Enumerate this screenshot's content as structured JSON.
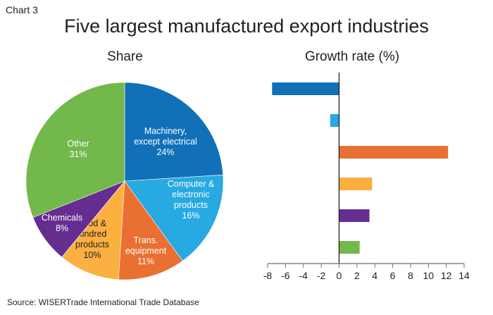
{
  "chart_label": "Chart 3",
  "title": "Five largest manufactured export industries",
  "source": "Source: WISERTrade International Trade Database",
  "chart_data": [
    {
      "type": "pie",
      "title": "Share",
      "slices": [
        {
          "label": [
            "Machinery,",
            "except electrical"
          ],
          "value": 24,
          "value_label": "24%",
          "color": "#1170b8"
        },
        {
          "label": [
            "Computer &",
            "electronic",
            "products"
          ],
          "value": 16,
          "value_label": "16%",
          "color": "#27a9e1"
        },
        {
          "label": [
            "Trans.",
            "equipment"
          ],
          "value": 11,
          "value_label": "11%",
          "color": "#ea6f33"
        },
        {
          "label": [
            "Food &",
            "kindred",
            "products"
          ],
          "value": 10,
          "value_label": "10%",
          "color": "#fbb040"
        },
        {
          "label": [
            "Chemicals"
          ],
          "value": 8,
          "value_label": "8%",
          "color": "#662d91"
        },
        {
          "label": [
            "Other"
          ],
          "value": 31,
          "value_label": "31%",
          "color": "#72b84b"
        }
      ]
    },
    {
      "type": "bar",
      "orientation": "horizontal",
      "title": "Growth rate (%)",
      "categories": [
        "Machinery, except electrical",
        "Computer & electronic products",
        "Trans. equipment",
        "Food & kindred products",
        "Chemicals",
        "Other"
      ],
      "values": [
        -7.5,
        -1.0,
        12.2,
        3.7,
        3.4,
        2.3
      ],
      "colors": [
        "#1170b8",
        "#27a9e1",
        "#ea6f33",
        "#fbb040",
        "#662d91",
        "#72b84b"
      ],
      "xlim": [
        -8,
        14
      ],
      "xticks": [
        "-8",
        "-6",
        "-4",
        "-2",
        "0",
        "2",
        "4",
        "6",
        "8",
        "10",
        "12",
        "14"
      ],
      "grid": false
    }
  ]
}
